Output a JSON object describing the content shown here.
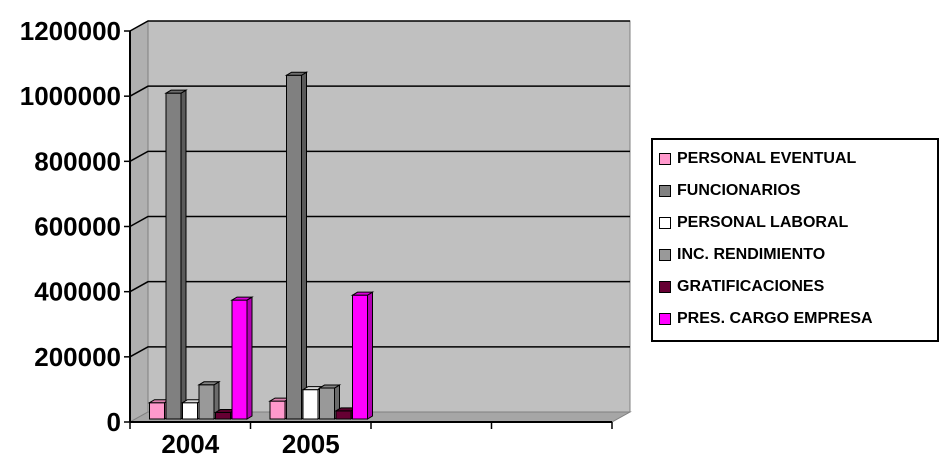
{
  "chart_data": {
    "type": "bar",
    "categories": [
      "2004",
      "2005",
      "",
      ""
    ],
    "y_ticks": [
      "0",
      "200000",
      "400000",
      "600000",
      "800000",
      "1000000",
      "1200000"
    ],
    "ylim": [
      0,
      1200000
    ],
    "grid": true,
    "legend_position": "right",
    "series": [
      {
        "name": "PERSONAL EVENTUAL",
        "color": "#FF99CC",
        "values": [
          50000,
          55000,
          null,
          null
        ]
      },
      {
        "name": "FUNCIONARIOS",
        "color": "#808080",
        "values": [
          1000000,
          1055000,
          null,
          null
        ]
      },
      {
        "name": "PERSONAL LABORAL",
        "color": "#FFFFFF",
        "values": [
          50000,
          90000,
          null,
          null
        ]
      },
      {
        "name": "INC. RENDIMIENTO",
        "color": "#999999",
        "values": [
          105000,
          95000,
          null,
          null
        ]
      },
      {
        "name": "GRATIFICACIONES",
        "color": "#660033",
        "values": [
          20000,
          25000,
          null,
          null
        ]
      },
      {
        "name": "PRES. CARGO EMPRESA",
        "color": "#FF00FF",
        "values": [
          365000,
          380000,
          null,
          null
        ]
      }
    ]
  }
}
